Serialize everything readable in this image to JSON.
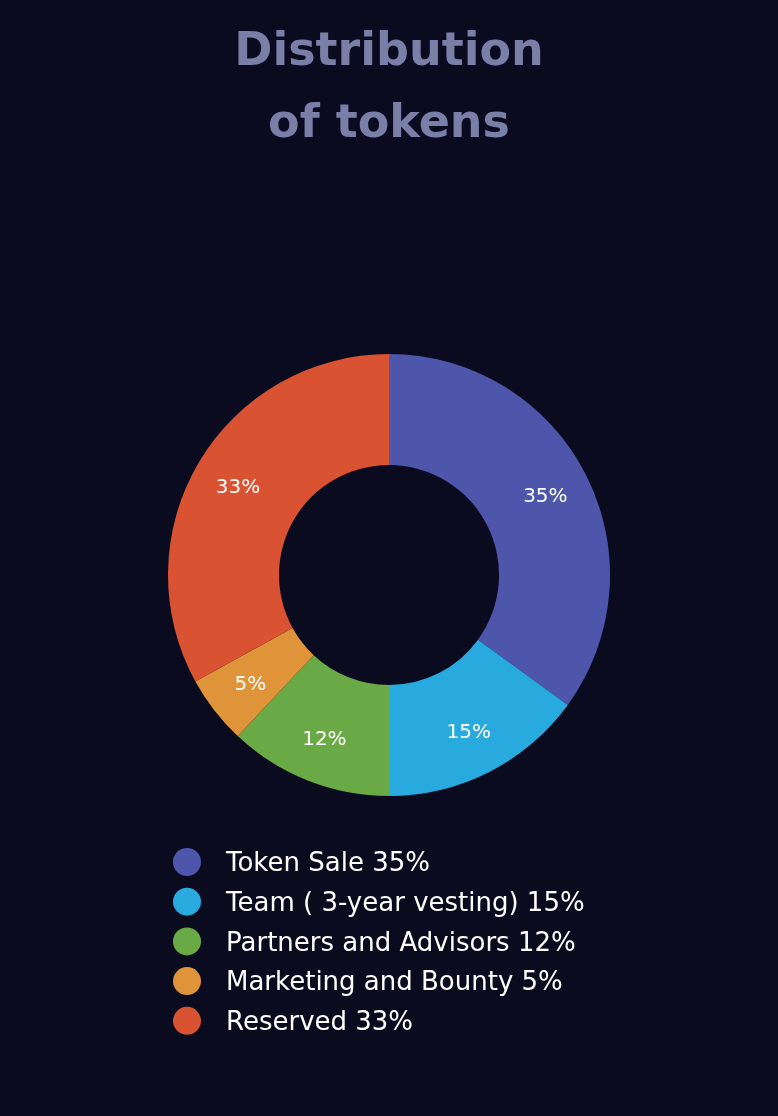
{
  "chart_data": {
    "type": "donut",
    "title": "Distribution\nof tokens",
    "categories": [
      "Token Sale",
      "Team ( 3-year vesting)",
      "Partners and Advisors",
      "Marketing and Bounty",
      "Reserved"
    ],
    "values": [
      35,
      15,
      12,
      5,
      33
    ],
    "value_labels": [
      "35%",
      "15%",
      "12%",
      "5%",
      "33%"
    ],
    "colors": [
      "#4e56ac",
      "#29aadf",
      "#69aa46",
      "#e0943a",
      "#d95232"
    ],
    "legend": "bottom"
  }
}
